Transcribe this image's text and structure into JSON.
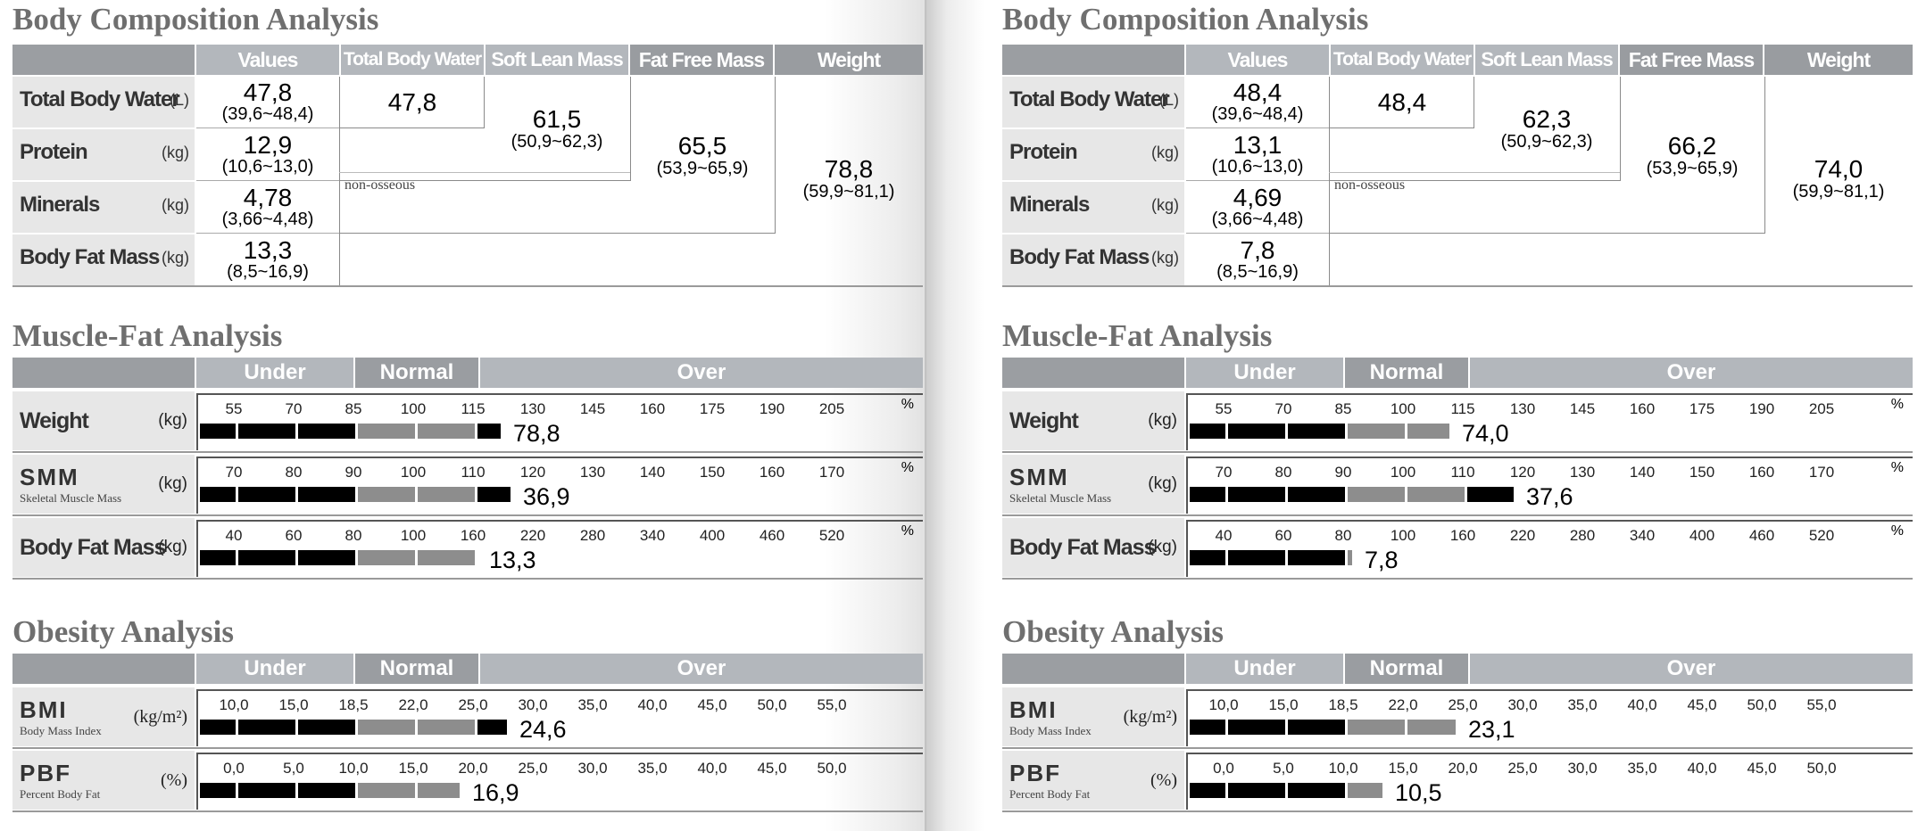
{
  "sections": {
    "body_comp": "Body Composition Analysis",
    "muscle_fat": "Muscle-Fat Analysis",
    "obesity": "Obesity Analysis"
  },
  "headers": {
    "values": "Values",
    "tbw": "Total Body Water",
    "slm": "Soft Lean Mass",
    "ffm": "Fat Free Mass",
    "weight": "Weight",
    "under": "Under",
    "normal": "Normal",
    "over": "Over"
  },
  "rows": {
    "tbw": {
      "name": "Total Body Water",
      "unit": "(L)"
    },
    "protein": {
      "name": "Protein",
      "unit": "(kg)"
    },
    "minerals": {
      "name": "Minerals",
      "unit": "(kg)"
    },
    "bfm": {
      "name": "Body Fat Mass",
      "unit": "(kg)"
    },
    "non_osseous": "non-osseous"
  },
  "bar_rows": {
    "weight": {
      "name": "Weight",
      "unit": "(kg)"
    },
    "smm": {
      "name": "SMM",
      "sub": "Skeletal Muscle Mass",
      "unit": "(kg)"
    },
    "bfm": {
      "name": "Body Fat Mass",
      "unit": "(kg)"
    },
    "bmi": {
      "name": "BMI",
      "sub": "Body Mass Index",
      "unit": "(kg/m²)"
    },
    "pbf": {
      "name": "PBF",
      "sub": "Percent Body Fat",
      "unit": "(%)"
    },
    "percent": "%"
  },
  "scales": {
    "weight": [
      "55",
      "70",
      "85",
      "100",
      "115",
      "130",
      "145",
      "160",
      "175",
      "190",
      "205"
    ],
    "smm": [
      "70",
      "80",
      "90",
      "100",
      "110",
      "120",
      "130",
      "140",
      "150",
      "160",
      "170"
    ],
    "bfm": [
      "40",
      "60",
      "80",
      "100",
      "160",
      "220",
      "280",
      "340",
      "400",
      "460",
      "520"
    ],
    "bmi": [
      "10,0",
      "15,0",
      "18,5",
      "22,0",
      "25,0",
      "30,0",
      "35,0",
      "40,0",
      "45,0",
      "50,0",
      "55,0"
    ],
    "pbf": [
      "0,0",
      "5,0",
      "10,0",
      "15,0",
      "20,0",
      "25,0",
      "30,0",
      "35,0",
      "40,0",
      "45,0",
      "50,0"
    ]
  },
  "reports": [
    {
      "tbw": {
        "value": "47,8",
        "range": "(39,6~48,4)",
        "sum": "47,8"
      },
      "protein": {
        "value": "12,9",
        "range": "(10,6~13,0)"
      },
      "minerals": {
        "value": "4,78",
        "range": "(3,66~4,48)"
      },
      "bfm": {
        "value": "13,3",
        "range": "(8,5~16,9)"
      },
      "slm": {
        "value": "61,5",
        "range": "(50,9~62,3)"
      },
      "ffm": {
        "value": "65,5",
        "range": "(53,9~65,9)"
      },
      "weight": {
        "value": "78,8",
        "range": "(59,9~81,1)"
      },
      "bars": {
        "weight": {
          "label": "78,8",
          "level": 0.445
        },
        "smm": {
          "label": "36,9",
          "level": 0.46
        },
        "bfm": {
          "label": "13,3",
          "level": 0.41
        },
        "bmi": {
          "label": "24,6",
          "level": 0.454
        },
        "pbf": {
          "label": "16,9",
          "level": 0.384
        }
      }
    },
    {
      "tbw": {
        "value": "48,4",
        "range": "(39,6~48,4)",
        "sum": "48,4"
      },
      "protein": {
        "value": "13,1",
        "range": "(10,6~13,0)"
      },
      "minerals": {
        "value": "4,69",
        "range": "(3,66~4,48)"
      },
      "bfm": {
        "value": "7,8",
        "range": "(8,5~16,9)"
      },
      "slm": {
        "value": "62,3",
        "range": "(50,9~62,3)"
      },
      "ffm": {
        "value": "66,2",
        "range": "(53,9~65,9)"
      },
      "weight": {
        "value": "74,0",
        "range": "(59,9~81,1)"
      },
      "bars": {
        "weight": {
          "label": "74,0",
          "level": 0.385
        },
        "smm": {
          "label": "37,6",
          "level": 0.48
        },
        "bfm": {
          "label": "7,8",
          "level": 0.24
        },
        "bmi": {
          "label": "23,1",
          "level": 0.393
        },
        "pbf": {
          "label": "10,5",
          "level": 0.285
        }
      }
    }
  ]
}
